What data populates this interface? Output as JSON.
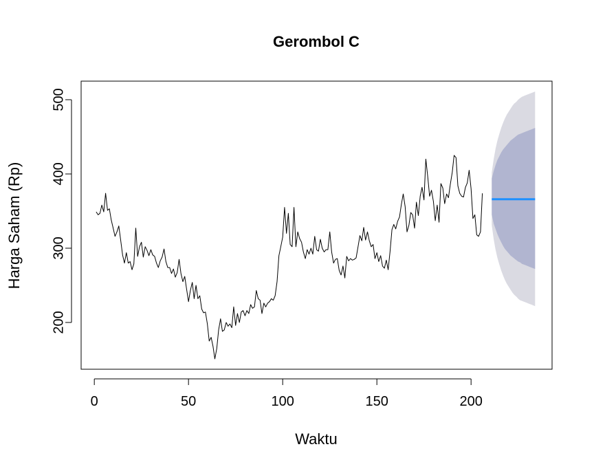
{
  "chart_data": {
    "type": "line",
    "title": "Gerombol C",
    "xlabel": "Waktu",
    "ylabel": "Harga Saham (Rp)",
    "xlim": [
      -7,
      243
    ],
    "ylim": [
      137,
      525
    ],
    "x_ticks": [
      0,
      50,
      100,
      150,
      200
    ],
    "y_ticks": [
      200,
      300,
      400,
      500
    ],
    "grid": false,
    "legend": "none",
    "colors": {
      "series": "#000000",
      "forecast": "#1e90ff",
      "band80": "#b1b5d0",
      "band95": "#dadae2"
    },
    "series": [
      {
        "values": [
          349,
          345,
          347,
          358,
          349,
          374,
          351,
          353,
          338,
          327,
          316,
          322,
          330,
          311,
          291,
          280,
          294,
          280,
          282,
          271,
          279,
          327,
          289,
          302,
          308,
          288,
          302,
          297,
          290,
          298,
          291,
          289,
          280,
          274,
          283,
          288,
          299,
          282,
          274,
          274,
          266,
          272,
          261,
          267,
          285,
          266,
          255,
          262,
          245,
          228,
          243,
          254,
          232,
          250,
          232,
          236,
          218,
          213,
          214,
          198,
          175,
          180,
          168,
          151,
          165,
          190,
          205,
          188,
          190,
          200,
          195,
          198,
          193,
          221,
          196,
          212,
          200,
          214,
          216,
          209,
          216,
          212,
          224,
          219,
          221,
          243,
          232,
          230,
          212,
          226,
          221,
          226,
          228,
          232,
          230,
          236,
          255,
          290,
          302,
          315,
          355,
          320,
          347,
          305,
          302,
          355,
          302,
          322,
          313,
          308,
          295,
          286,
          298,
          292,
          300,
          292,
          316,
          298,
          296,
          312,
          300,
          295,
          298,
          298,
          322,
          295,
          280,
          285,
          286,
          270,
          264,
          276,
          260,
          289,
          283,
          286,
          284,
          285,
          287,
          302,
          317,
          310,
          328,
          311,
          322,
          310,
          302,
          305,
          286,
          294,
          282,
          290,
          276,
          273,
          284,
          271,
          296,
          325,
          332,
          326,
          336,
          342,
          359,
          373,
          356,
          322,
          331,
          348,
          345,
          327,
          362,
          344,
          370,
          382,
          365,
          420,
          396,
          370,
          378,
          363,
          337,
          358,
          335,
          387,
          381,
          360,
          373,
          368,
          386,
          402,
          425,
          422,
          384,
          374,
          370,
          369,
          382,
          388,
          405,
          380,
          340,
          345,
          318,
          316,
          322,
          374
        ]
      }
    ],
    "forecast": {
      "x_start": 211,
      "x_end": 234,
      "point": 366,
      "lo80": [
        345,
        333,
        326,
        319,
        313,
        308,
        303,
        299,
        296,
        293,
        290,
        288,
        286,
        284,
        282,
        281,
        279,
        278,
        277,
        276,
        275,
        274,
        273,
        272
      ],
      "hi80": [
        394,
        404,
        412,
        419,
        424,
        429,
        433,
        436,
        439,
        442,
        445,
        447,
        449,
        451,
        453,
        454,
        455,
        456,
        457,
        458,
        459,
        460,
        461,
        462
      ],
      "lo95": [
        331,
        312,
        298,
        287,
        278,
        270,
        263,
        257,
        252,
        248,
        244,
        240,
        237,
        235,
        232,
        230,
        229,
        228,
        227,
        226,
        225,
        224,
        223,
        222
      ],
      "hi95": [
        402,
        420,
        434,
        445,
        454,
        462,
        469,
        475,
        480,
        484,
        488,
        492,
        495,
        497,
        500,
        502,
        504,
        505,
        506,
        507,
        508,
        509,
        510,
        511
      ]
    }
  }
}
